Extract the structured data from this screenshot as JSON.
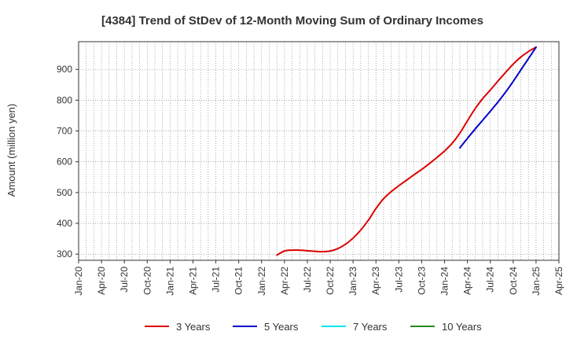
{
  "chart_data": {
    "type": "line",
    "title": "[4384]  Trend of StDev of 12-Month Moving Sum of Ordinary Incomes",
    "xlabel": "",
    "ylabel": "Amount (million yen)",
    "x_ticks": [
      "Jan-20",
      "Apr-20",
      "Jul-20",
      "Oct-20",
      "Jan-21",
      "Apr-21",
      "Jul-21",
      "Oct-21",
      "Jan-22",
      "Apr-22",
      "Jul-22",
      "Oct-22",
      "Jan-23",
      "Apr-23",
      "Jul-23",
      "Oct-23",
      "Jan-24",
      "Apr-24",
      "Jul-24",
      "Oct-24",
      "Jan-25",
      "Apr-25"
    ],
    "xlim": [
      "2020-01",
      "2025-04"
    ],
    "y_ticks": [
      300,
      400,
      500,
      600,
      700,
      800,
      900
    ],
    "ylim": [
      280,
      990
    ],
    "grid": true,
    "legend_position": "bottom",
    "series": [
      {
        "name": "3 Years",
        "color": "#dd0000",
        "points": [
          [
            "2022-03",
            297
          ],
          [
            "2022-04",
            310
          ],
          [
            "2022-05",
            313
          ],
          [
            "2022-06",
            313
          ],
          [
            "2022-07",
            311
          ],
          [
            "2022-08",
            309
          ],
          [
            "2022-09",
            308
          ],
          [
            "2022-10",
            310
          ],
          [
            "2022-11",
            318
          ],
          [
            "2022-12",
            332
          ],
          [
            "2023-01",
            352
          ],
          [
            "2023-02",
            378
          ],
          [
            "2023-03",
            410
          ],
          [
            "2023-04",
            448
          ],
          [
            "2023-05",
            480
          ],
          [
            "2023-06",
            503
          ],
          [
            "2023-07",
            522
          ],
          [
            "2023-08",
            540
          ],
          [
            "2023-09",
            558
          ],
          [
            "2023-10",
            575
          ],
          [
            "2023-11",
            594
          ],
          [
            "2023-12",
            614
          ],
          [
            "2024-01",
            635
          ],
          [
            "2024-02",
            660
          ],
          [
            "2024-03",
            693
          ],
          [
            "2024-04",
            733
          ],
          [
            "2024-05",
            772
          ],
          [
            "2024-06",
            805
          ],
          [
            "2024-07",
            833
          ],
          [
            "2024-08",
            862
          ],
          [
            "2024-09",
            890
          ],
          [
            "2024-10",
            917
          ],
          [
            "2024-11",
            940
          ],
          [
            "2024-12",
            958
          ],
          [
            "2025-01",
            972
          ]
        ]
      },
      {
        "name": "5 Years",
        "color": "#0000cc",
        "points": [
          [
            "2024-03",
            645
          ],
          [
            "2024-04",
            676
          ],
          [
            "2024-05",
            706
          ],
          [
            "2024-06",
            735
          ],
          [
            "2024-07",
            764
          ],
          [
            "2024-08",
            794
          ],
          [
            "2024-09",
            826
          ],
          [
            "2024-10",
            861
          ],
          [
            "2024-11",
            898
          ],
          [
            "2024-12",
            935
          ],
          [
            "2025-01",
            972
          ]
        ]
      },
      {
        "name": "7 Years",
        "color": "#00e5ee",
        "points": []
      },
      {
        "name": "10 Years",
        "color": "#228b22",
        "points": []
      }
    ]
  }
}
